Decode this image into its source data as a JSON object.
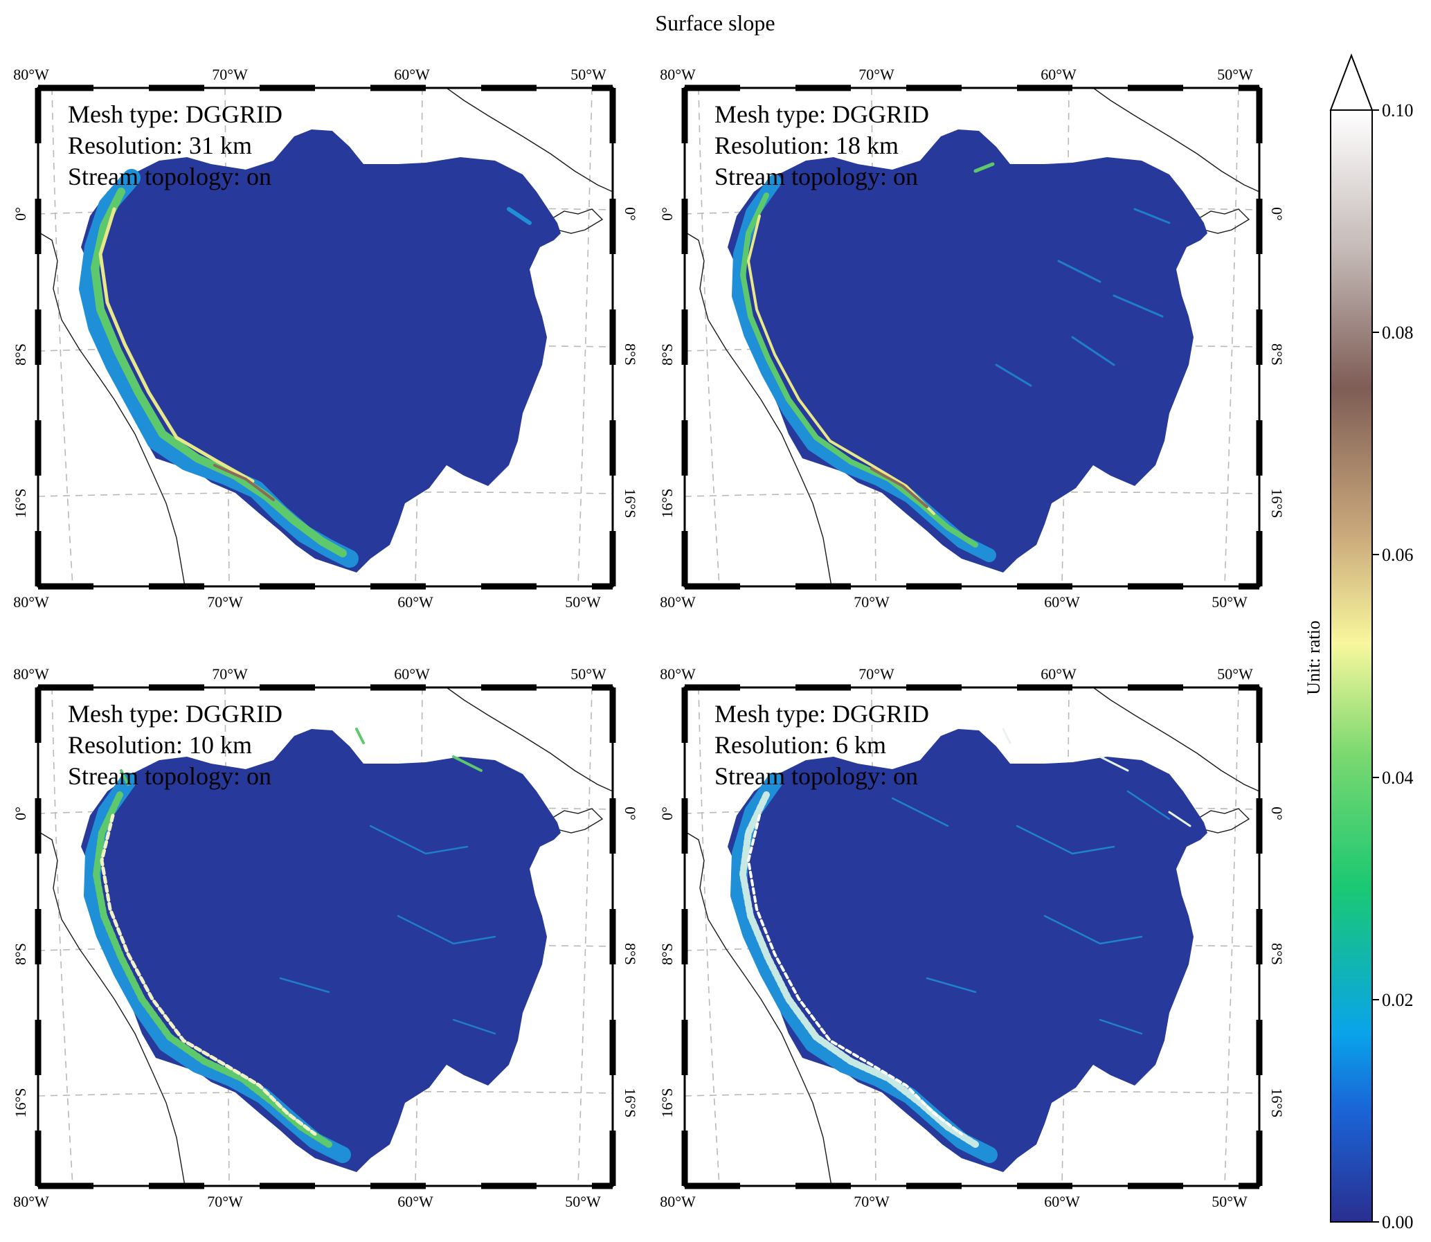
{
  "title": "Surface slope",
  "axes": {
    "x_ticks": [
      "80°W",
      "70°W",
      "60°W",
      "50°W"
    ],
    "y_ticks": [
      "0°",
      "8°S",
      "16°S"
    ]
  },
  "annotation_labels": {
    "mesh_type": "Mesh type: DGGRID",
    "stream_topology": "Stream topology: on"
  },
  "panels": [
    {
      "resolution": "Resolution: 31 km",
      "resolution_km": 31
    },
    {
      "resolution": "Resolution: 18 km",
      "resolution_km": 18
    },
    {
      "resolution": "Resolution: 10 km",
      "resolution_km": 10
    },
    {
      "resolution": "Resolution: 6 km",
      "resolution_km": 6
    }
  ],
  "colorbar": {
    "label": "Unit: ratio",
    "ticks": [
      "0.00",
      "0.02",
      "0.04",
      "0.06",
      "0.08",
      "0.10"
    ],
    "min": 0,
    "max": 0.1,
    "extend": "max",
    "colors": [
      "#2a2f8f",
      "#1a64d6",
      "#09a4ea",
      "#1ac873",
      "#7ad86f",
      "#f8f79d",
      "#c9a87b",
      "#7e5d56",
      "#c2b7b4",
      "#ffffff"
    ]
  },
  "colors": {
    "basin_base": "#27399a",
    "highland_low": "#1f8fd8",
    "highland_mid": "#5ec86c",
    "highland_high": "#e8e88a",
    "highland_peak": "#8b6a57"
  }
}
